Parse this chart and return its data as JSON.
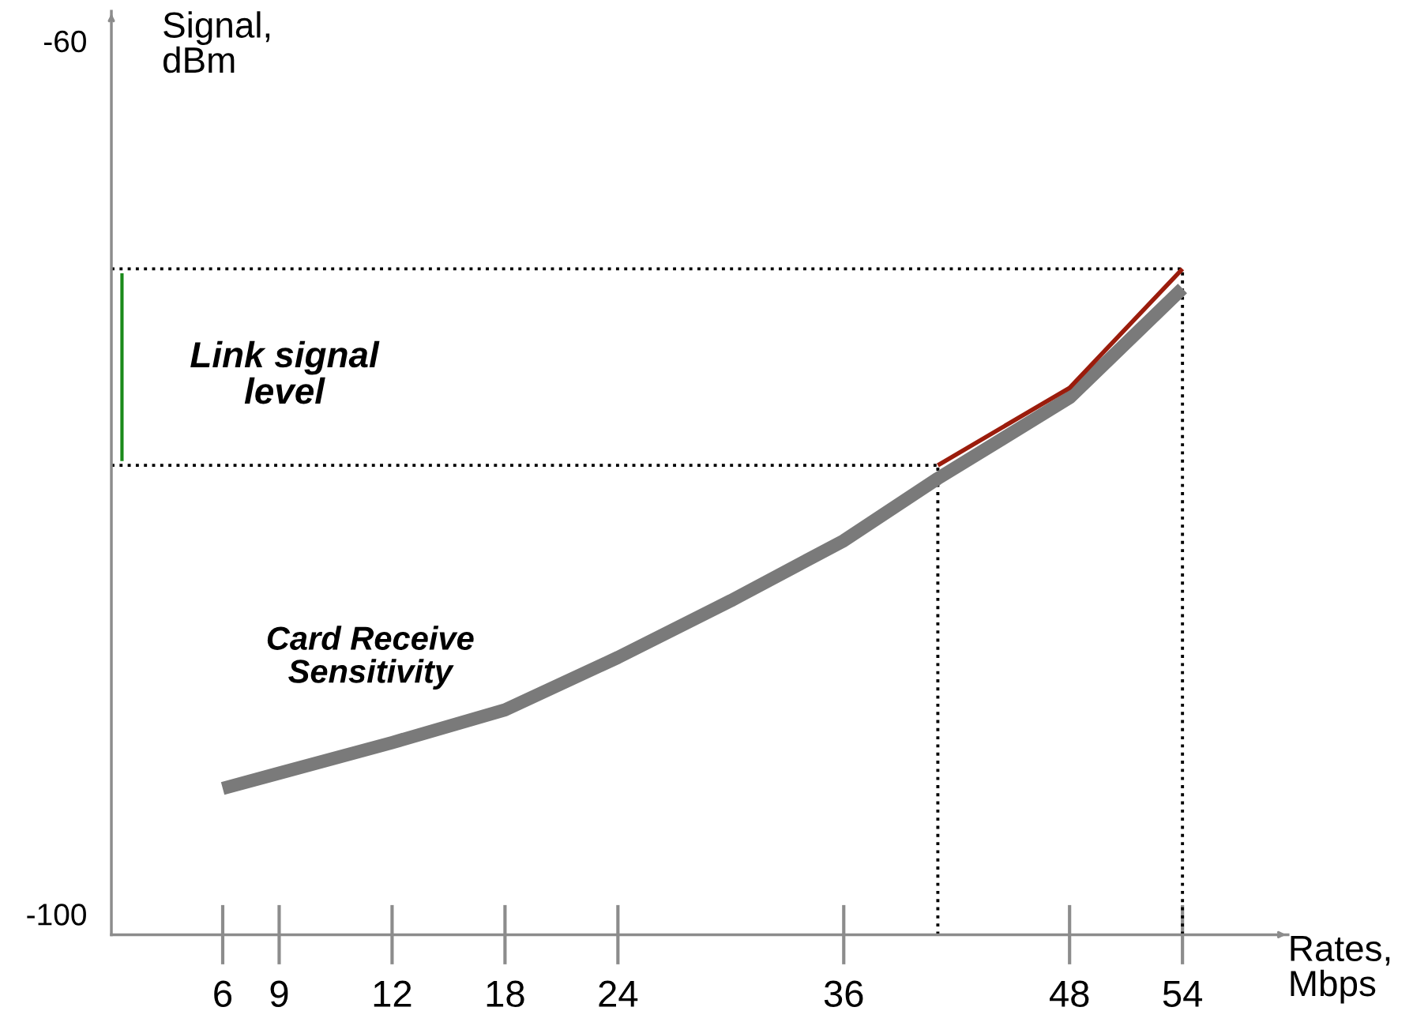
{
  "chart_data": {
    "type": "line",
    "ylabel": "Signal,\ndBm",
    "xlabel": "Rates,\nMbps",
    "categories": [
      "6",
      null,
      null,
      "9",
      null,
      null,
      null,
      null,
      null,
      "12",
      null,
      null,
      null,
      null,
      null,
      "18",
      null,
      null,
      null,
      null,
      null,
      "24",
      null,
      null,
      null,
      null,
      null,
      null,
      null,
      null,
      null,
      null,
      null,
      "36",
      null,
      null,
      null,
      null,
      null,
      null,
      null,
      null,
      null,
      null,
      null,
      "48",
      null,
      null,
      null,
      null,
      null,
      "54"
    ],
    "ylim": [
      -100.8,
      -58.5
    ],
    "yticks": [
      -60,
      -100
    ],
    "series": [
      {
        "color": "#7a7a7a",
        "values": [
          -94.1,
          null,
          null,
          -93.4,
          null,
          null,
          null,
          null,
          null,
          -92.0,
          null,
          null,
          null,
          null,
          null,
          -90.5,
          null,
          null,
          null,
          null,
          null,
          -88.1,
          null,
          null,
          null,
          null,
          null,
          -85.5,
          null,
          null,
          null,
          null,
          null,
          -82.75,
          null,
          null,
          null,
          null,
          -79.9,
          null,
          null,
          null,
          null,
          null,
          null,
          -76.2,
          null,
          null,
          null,
          null,
          null,
          -71.2
        ]
      },
      {
        "color": "#9b1c0c",
        "values": [
          null,
          null,
          null,
          null,
          null,
          null,
          null,
          null,
          null,
          null,
          null,
          null,
          null,
          null,
          null,
          null,
          null,
          null,
          null,
          null,
          null,
          null,
          null,
          null,
          null,
          null,
          null,
          null,
          null,
          null,
          null,
          null,
          null,
          null,
          null,
          null,
          null,
          null,
          -79.3,
          null,
          null,
          null,
          null,
          null,
          null,
          -75.75,
          null,
          null,
          null,
          null,
          null,
          -70.3
        ]
      }
    ],
    "ref_lines": [
      {
        "axis": "y",
        "value": -70.3,
        "line_style": "dotted",
        "color": "#000000"
      },
      {
        "axis": "y",
        "value": -79.3,
        "line_style": "dotted",
        "color": "#000000"
      }
    ],
    "annotations": [
      "Link signal\nlevel",
      "Card Receive\nSensitivity"
    ],
    "grid": false,
    "legend": false
  }
}
